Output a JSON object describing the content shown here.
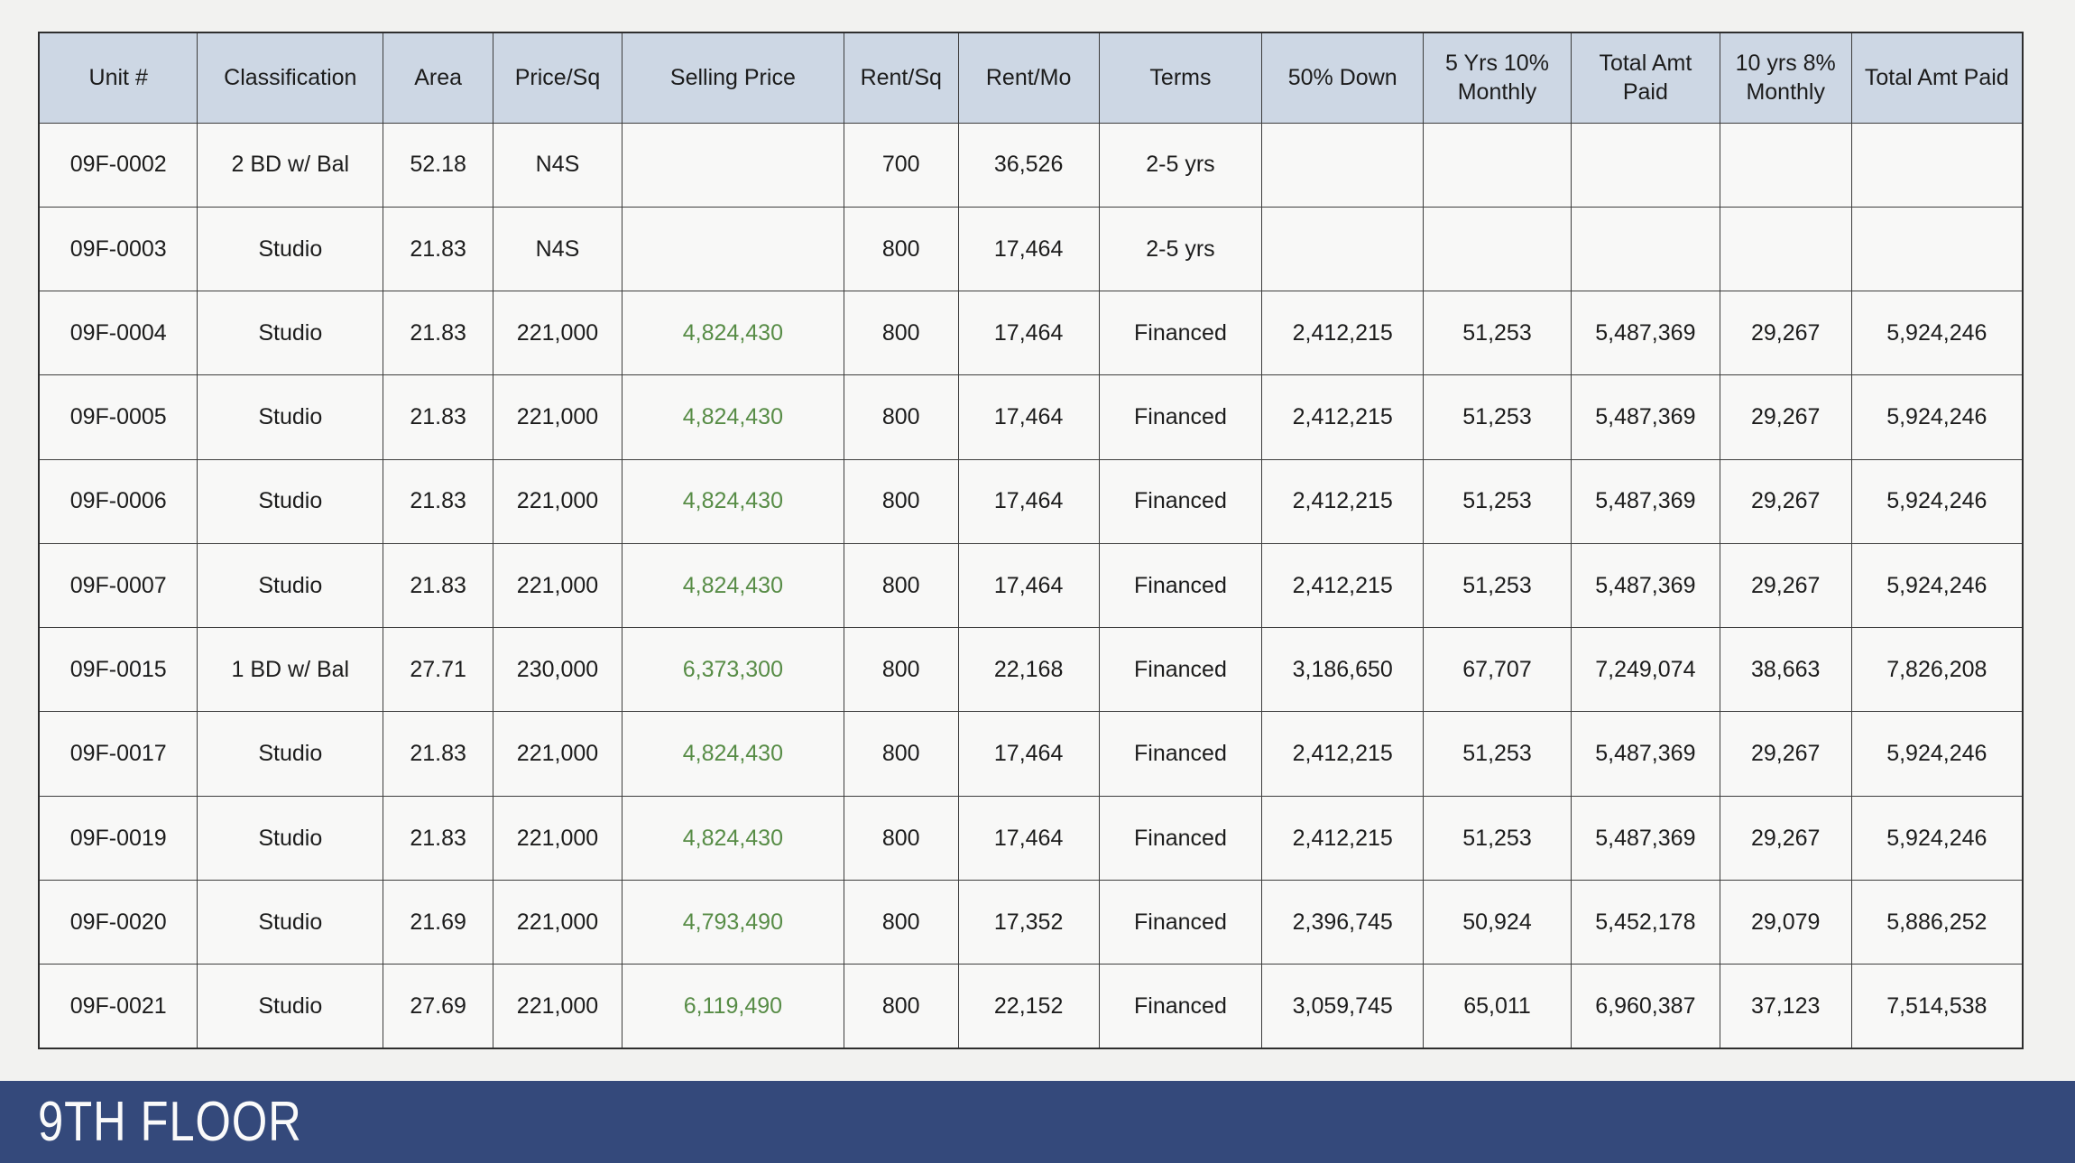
{
  "table": {
    "columns": [
      {
        "key": "unit",
        "label": "Unit #"
      },
      {
        "key": "classification",
        "label": "Classification"
      },
      {
        "key": "area",
        "label": "Area"
      },
      {
        "key": "price_sq",
        "label": "Price/Sq"
      },
      {
        "key": "selling_price",
        "label": "Selling Price"
      },
      {
        "key": "rent_sq",
        "label": "Rent/Sq"
      },
      {
        "key": "rent_mo",
        "label": "Rent/Mo"
      },
      {
        "key": "terms",
        "label": "Terms"
      },
      {
        "key": "down_50",
        "label": "50% Down"
      },
      {
        "key": "monthly_5yr",
        "label": "5 Yrs 10% Monthly"
      },
      {
        "key": "total_5yr",
        "label": "Total Amt Paid"
      },
      {
        "key": "monthly_10yr",
        "label": "10 yrs 8% Monthly"
      },
      {
        "key": "total_10yr",
        "label": "Total Amt Paid"
      }
    ],
    "rows": [
      {
        "unit": "09F-0002",
        "classification": "2 BD w/ Bal",
        "area": "52.18",
        "price_sq": "N4S",
        "selling_price": "",
        "rent_sq": "700",
        "rent_mo": "36,526",
        "terms": "2-5 yrs",
        "down_50": "",
        "monthly_5yr": "",
        "total_5yr": "",
        "monthly_10yr": "",
        "total_10yr": ""
      },
      {
        "unit": "09F-0003",
        "classification": "Studio",
        "area": "21.83",
        "price_sq": "N4S",
        "selling_price": "",
        "rent_sq": "800",
        "rent_mo": "17,464",
        "terms": "2-5 yrs",
        "down_50": "",
        "monthly_5yr": "",
        "total_5yr": "",
        "monthly_10yr": "",
        "total_10yr": ""
      },
      {
        "unit": "09F-0004",
        "classification": "Studio",
        "area": "21.83",
        "price_sq": "221,000",
        "selling_price": "4,824,430",
        "rent_sq": "800",
        "rent_mo": "17,464",
        "terms": "Financed",
        "down_50": "2,412,215",
        "monthly_5yr": "51,253",
        "total_5yr": "5,487,369",
        "monthly_10yr": "29,267",
        "total_10yr": "5,924,246"
      },
      {
        "unit": "09F-0005",
        "classification": "Studio",
        "area": "21.83",
        "price_sq": "221,000",
        "selling_price": "4,824,430",
        "rent_sq": "800",
        "rent_mo": "17,464",
        "terms": "Financed",
        "down_50": "2,412,215",
        "monthly_5yr": "51,253",
        "total_5yr": "5,487,369",
        "monthly_10yr": "29,267",
        "total_10yr": "5,924,246"
      },
      {
        "unit": "09F-0006",
        "classification": "Studio",
        "area": "21.83",
        "price_sq": "221,000",
        "selling_price": "4,824,430",
        "rent_sq": "800",
        "rent_mo": "17,464",
        "terms": "Financed",
        "down_50": "2,412,215",
        "monthly_5yr": "51,253",
        "total_5yr": "5,487,369",
        "monthly_10yr": "29,267",
        "total_10yr": "5,924,246"
      },
      {
        "unit": "09F-0007",
        "classification": "Studio",
        "area": "21.83",
        "price_sq": "221,000",
        "selling_price": "4,824,430",
        "rent_sq": "800",
        "rent_mo": "17,464",
        "terms": "Financed",
        "down_50": "2,412,215",
        "monthly_5yr": "51,253",
        "total_5yr": "5,487,369",
        "monthly_10yr": "29,267",
        "total_10yr": "5,924,246"
      },
      {
        "unit": "09F-0015",
        "classification": "1 BD w/ Bal",
        "area": "27.71",
        "price_sq": "230,000",
        "selling_price": "6,373,300",
        "rent_sq": "800",
        "rent_mo": "22,168",
        "terms": "Financed",
        "down_50": "3,186,650",
        "monthly_5yr": "67,707",
        "total_5yr": "7,249,074",
        "monthly_10yr": "38,663",
        "total_10yr": "7,826,208"
      },
      {
        "unit": "09F-0017",
        "classification": "Studio",
        "area": "21.83",
        "price_sq": "221,000",
        "selling_price": "4,824,430",
        "rent_sq": "800",
        "rent_mo": "17,464",
        "terms": "Financed",
        "down_50": "2,412,215",
        "monthly_5yr": "51,253",
        "total_5yr": "5,487,369",
        "monthly_10yr": "29,267",
        "total_10yr": "5,924,246"
      },
      {
        "unit": "09F-0019",
        "classification": "Studio",
        "area": "21.83",
        "price_sq": "221,000",
        "selling_price": "4,824,430",
        "rent_sq": "800",
        "rent_mo": "17,464",
        "terms": "Financed",
        "down_50": "2,412,215",
        "monthly_5yr": "51,253",
        "total_5yr": "5,487,369",
        "monthly_10yr": "29,267",
        "total_10yr": "5,924,246"
      },
      {
        "unit": "09F-0020",
        "classification": "Studio",
        "area": "21.69",
        "price_sq": "221,000",
        "selling_price": "4,793,490",
        "rent_sq": "800",
        "rent_mo": "17,352",
        "terms": "Financed",
        "down_50": "2,396,745",
        "monthly_5yr": "50,924",
        "total_5yr": "5,452,178",
        "monthly_10yr": "29,079",
        "total_10yr": "5,886,252"
      },
      {
        "unit": "09F-0021",
        "classification": "Studio",
        "area": "27.69",
        "price_sq": "221,000",
        "selling_price": "6,119,490",
        "rent_sq": "800",
        "rent_mo": "22,152",
        "terms": "Financed",
        "down_50": "3,059,745",
        "monthly_5yr": "65,011",
        "total_5yr": "6,960,387",
        "monthly_10yr": "37,123",
        "total_10yr": "7,514,538"
      }
    ],
    "special_values": {
      "not_for_sale": "N4S"
    }
  },
  "footer": {
    "label": "9TH FLOOR"
  },
  "colors": {
    "page_bg": "#f2f2f0",
    "cell_bg": "#f8f8f7",
    "header_bg": "#cdd7e4",
    "studio_bg": "#e9e4d2",
    "two_bd_bal_bg": "#cdd2ca",
    "one_bd_bal_bg": "#e0dfe9",
    "selling_price_green": "#578c46",
    "banner_bg": "#34497b",
    "banner_text": "#fafafa"
  }
}
